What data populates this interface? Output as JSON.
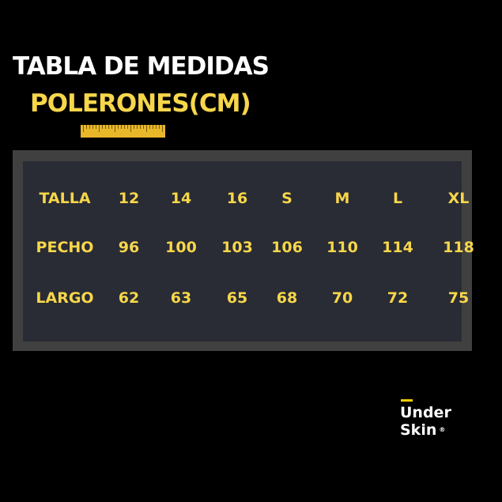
{
  "title": "TABLA DE MEDIDAS",
  "subtitle": "POLERONES(CM)",
  "colors": {
    "accent": "#f7d64a",
    "panel": "#292c34",
    "frame": "#404040",
    "background": "#000000"
  },
  "icons": [
    "ruler-icon"
  ],
  "table": {
    "rows": [
      {
        "label": "TALLA",
        "values": [
          "12",
          "14",
          "16",
          "S",
          "M",
          "L",
          "XL"
        ]
      },
      {
        "label": "PECHO",
        "values": [
          "96",
          "100",
          "103",
          "106",
          "110",
          "114",
          "118"
        ]
      },
      {
        "label": "LARGO",
        "values": [
          "62",
          "63",
          "65",
          "68",
          "70",
          "72",
          "75"
        ]
      }
    ]
  },
  "logo": {
    "line1": "Under",
    "line2": "Skin",
    "mark": "®"
  }
}
